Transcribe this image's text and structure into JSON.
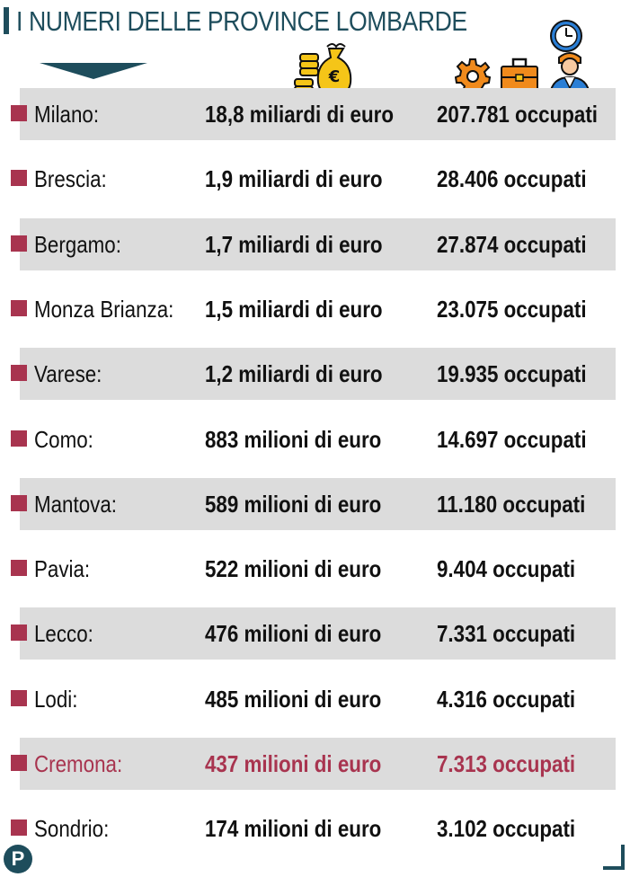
{
  "title": "I NUMERI DELLE PROVINCE LOMBARDE",
  "logo_letter": "P",
  "colors": {
    "accent": "#a8344f",
    "title": "#1e4d5c",
    "row_shade": "#dcdcdc",
    "icon_gold": "#f5c518",
    "icon_orange": "#f08a1c"
  },
  "icons": [
    "money-bag-icon",
    "gear-icon",
    "briefcase-icon",
    "clock-icon",
    "worker-icon"
  ],
  "chart_data": {
    "type": "table",
    "highlight_row": "Cremona:",
    "columns": [
      "",
      "",
      ""
    ],
    "rows": [
      {
        "province": "Milano:",
        "value": "18,8 miliardi di euro",
        "employed": "207.781 occupati",
        "value_eur_millions": 18800,
        "employed_count": 207781
      },
      {
        "province": "Brescia:",
        "value": "1,9 miliardi di euro",
        "employed": "28.406 occupati",
        "value_eur_millions": 1900,
        "employed_count": 28406
      },
      {
        "province": "Bergamo:",
        "value": "1,7 miliardi di euro",
        "employed": "27.874 occupati",
        "value_eur_millions": 1700,
        "employed_count": 27874
      },
      {
        "province": "Monza Brianza:",
        "value": "1,5 miliardi di euro",
        "employed": "23.075 occupati",
        "value_eur_millions": 1500,
        "employed_count": 23075
      },
      {
        "province": "Varese:",
        "value": "1,2 miliardi di euro",
        "employed": "19.935 occupati",
        "value_eur_millions": 1200,
        "employed_count": 19935
      },
      {
        "province": "Como:",
        "value": "883 milioni di euro",
        "employed": "14.697 occupati",
        "value_eur_millions": 883,
        "employed_count": 14697
      },
      {
        "province": "Mantova:",
        "value": "589 milioni di euro",
        "employed": "11.180 occupati",
        "value_eur_millions": 589,
        "employed_count": 11180
      },
      {
        "province": "Pavia:",
        "value": "522 milioni di euro",
        "employed": "9.404 occupati",
        "value_eur_millions": 522,
        "employed_count": 9404
      },
      {
        "province": "Lecco:",
        "value": "476 milioni di euro",
        "employed": "7.331 occupati",
        "value_eur_millions": 476,
        "employed_count": 7331
      },
      {
        "province": "Lodi:",
        "value": "485 milioni di euro",
        "employed": "4.316 occupati",
        "value_eur_millions": 485,
        "employed_count": 4316
      },
      {
        "province": "Cremona:",
        "value": "437 milioni di euro",
        "employed": "7.313 occupati",
        "value_eur_millions": 437,
        "employed_count": 7313
      },
      {
        "province": "Sondrio:",
        "value": "174 milioni di euro",
        "employed": "3.102 occupati",
        "value_eur_millions": 174,
        "employed_count": 3102
      }
    ]
  }
}
